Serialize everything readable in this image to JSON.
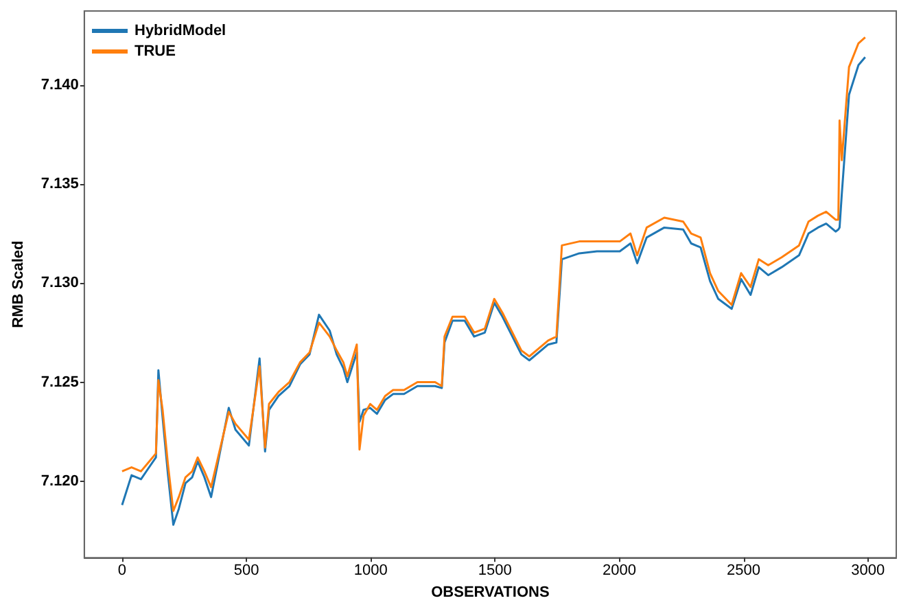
{
  "chart_data": {
    "type": "line",
    "xlabel": "OBSERVATIONS",
    "ylabel": "RMB Scaled",
    "x": [
      0,
      38,
      76,
      103,
      136,
      146,
      163,
      184,
      206,
      228,
      255,
      282,
      304,
      331,
      358,
      429,
      456,
      510,
      553,
      575,
      591,
      629,
      673,
      716,
      754,
      792,
      835,
      863,
      890,
      906,
      944,
      955,
      971,
      998,
      1025,
      1058,
      1090,
      1134,
      1161,
      1188,
      1221,
      1259,
      1286,
      1297,
      1329,
      1378,
      1416,
      1459,
      1497,
      1530,
      1606,
      1638,
      1714,
      1747,
      1769,
      1839,
      1910,
      2002,
      2045,
      2072,
      2110,
      2181,
      2257,
      2289,
      2327,
      2365,
      2398,
      2452,
      2490,
      2528,
      2561,
      2599,
      2653,
      2723,
      2761,
      2799,
      2832,
      2870,
      2881,
      2886,
      2895,
      2924,
      2962,
      2989
    ],
    "series": [
      {
        "name": "HybridModel",
        "color": "#1f77b4",
        "values": [
          7.1188,
          7.1203,
          7.1201,
          7.1206,
          7.1212,
          7.1256,
          7.1232,
          7.1204,
          7.1178,
          7.1186,
          7.1199,
          7.1202,
          7.121,
          7.1202,
          7.1192,
          7.1237,
          7.1226,
          7.1218,
          7.1262,
          7.1215,
          7.1236,
          7.1243,
          7.1248,
          7.1259,
          7.1264,
          7.1284,
          7.1276,
          7.1264,
          7.1257,
          7.125,
          7.1265,
          7.123,
          7.1236,
          7.1237,
          7.1234,
          7.1241,
          7.1244,
          7.1244,
          7.1246,
          7.1248,
          7.1248,
          7.1248,
          7.1247,
          7.127,
          7.1281,
          7.1281,
          7.1273,
          7.1275,
          7.129,
          7.1283,
          7.1264,
          7.1261,
          7.1269,
          7.127,
          7.1312,
          7.1315,
          7.1316,
          7.1316,
          7.132,
          7.131,
          7.1323,
          7.1328,
          7.1327,
          7.132,
          7.1318,
          7.1301,
          7.1292,
          7.1287,
          7.1302,
          7.1294,
          7.1308,
          7.1304,
          7.1308,
          7.1314,
          7.1325,
          7.1328,
          7.133,
          7.1326,
          7.1327,
          7.1328,
          7.1345,
          7.1395,
          7.141,
          7.1414
        ]
      },
      {
        "name": "TRUE",
        "color": "#ff7f0e",
        "values": [
          7.1205,
          7.1207,
          7.1205,
          7.1209,
          7.1214,
          7.1251,
          7.1236,
          7.1209,
          7.1185,
          7.1192,
          7.1202,
          7.1205,
          7.1212,
          7.1205,
          7.1197,
          7.1235,
          7.1229,
          7.1221,
          7.1258,
          7.1217,
          7.1239,
          7.1245,
          7.125,
          7.126,
          7.1265,
          7.128,
          7.1273,
          7.1266,
          7.126,
          7.1253,
          7.1269,
          7.1216,
          7.1233,
          7.1239,
          7.1236,
          7.1243,
          7.1246,
          7.1246,
          7.1248,
          7.125,
          7.125,
          7.125,
          7.1248,
          7.1273,
          7.1283,
          7.1283,
          7.1275,
          7.1277,
          7.1292,
          7.1285,
          7.1266,
          7.1263,
          7.1271,
          7.1273,
          7.1319,
          7.1321,
          7.1321,
          7.1321,
          7.1325,
          7.1314,
          7.1328,
          7.1333,
          7.1331,
          7.1325,
          7.1323,
          7.1305,
          7.1296,
          7.1289,
          7.1305,
          7.1298,
          7.1312,
          7.1309,
          7.1313,
          7.1319,
          7.1331,
          7.1334,
          7.1336,
          7.1332,
          7.1332,
          7.1382,
          7.1362,
          7.1409,
          7.1421,
          7.1424
        ]
      }
    ],
    "xlim": [
      -152,
      3114
    ],
    "xticks": [
      0,
      500,
      1000,
      1500,
      2000,
      2500,
      3000
    ],
    "ylim": [
      7.11614,
      7.14373
    ],
    "yticks": [
      {
        "value": 7.12,
        "label": "7.120"
      },
      {
        "value": 7.125,
        "label": "7.125"
      },
      {
        "value": 7.13,
        "label": "7.130"
      },
      {
        "value": 7.135,
        "label": "7.135"
      },
      {
        "value": 7.14,
        "label": "7.140"
      }
    ],
    "grid": false,
    "legend": "top left",
    "marker": "none",
    "line_style": "solid"
  }
}
